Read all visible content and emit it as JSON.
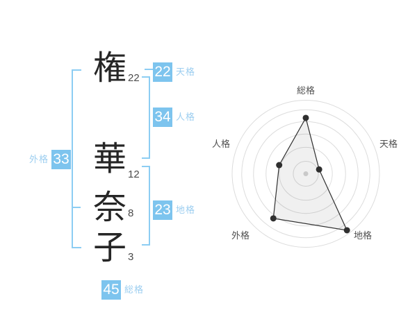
{
  "name_panel": {
    "characters": [
      {
        "char": "権",
        "strokes": "22"
      },
      {
        "char": "華",
        "strokes": "12"
      },
      {
        "char": "奈",
        "strokes": "8"
      },
      {
        "char": "子",
        "strokes": "3"
      }
    ],
    "badges": {
      "tenkaku": {
        "value": "22",
        "label": "天格"
      },
      "jinkaku": {
        "value": "34",
        "label": "人格"
      },
      "chikaku": {
        "value": "23",
        "label": "地格"
      },
      "gaikaku": {
        "value": "33",
        "label": "外格"
      },
      "soukaku": {
        "value": "45",
        "label": "総格"
      }
    },
    "colors": {
      "badge_bg": "#7dc4ee",
      "badge_text": "#ffffff",
      "label": "#9ccef0",
      "bracket": "#8ccdf3",
      "character": "#262626",
      "stroke_number": "#4a4a4a"
    }
  },
  "chart_data": {
    "type": "radar",
    "title": "",
    "categories": [
      "総格",
      "天格",
      "地格",
      "外格",
      "人格"
    ],
    "values": [
      76,
      19,
      95,
      75,
      38
    ],
    "max": 100,
    "ring_levels_pct": [
      17,
      36,
      54,
      71,
      87,
      100
    ],
    "start_angle_deg": -90,
    "direction": "clockwise",
    "grid": "circular",
    "colors": {
      "ring": "#dcdcdc",
      "fill": "rgba(0,0,0,0.06)",
      "stroke": "#2f2f2f",
      "point": "#2f2f2f",
      "center_dot": "#c9c9c9",
      "label": "#4f4f4f"
    }
  }
}
